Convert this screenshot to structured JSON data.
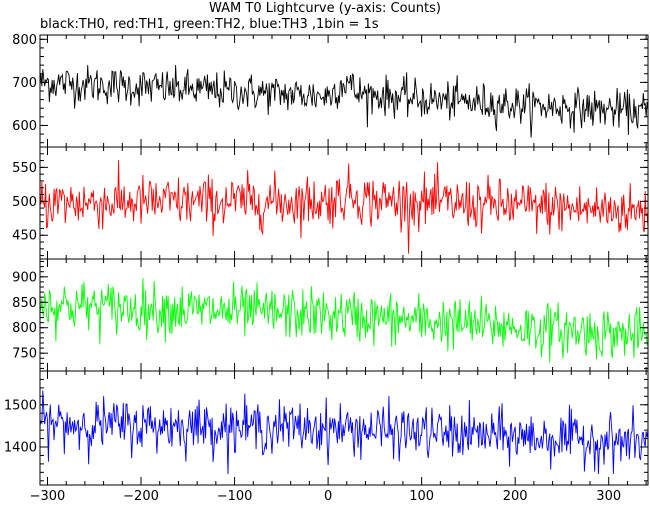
{
  "chart_data": {
    "type": "line",
    "title": "WAM T0 Lightcurve (y-axis: Counts)",
    "subtitle": "black:TH0, red:TH1, green:TH2, blue:TH3 ,1bin = 1s",
    "xlabel": "",
    "ylabel": "",
    "xlim": [
      -308,
      342
    ],
    "x_ticks": [
      -300,
      -200,
      -100,
      0,
      100,
      200,
      300
    ],
    "x_tick_labels": [
      "−300",
      "−200",
      "−100",
      "0",
      "100",
      "200",
      "300"
    ],
    "x_minor_step": 20,
    "x_step_seconds": 1,
    "grid": false,
    "panels": [
      {
        "series_name": "TH0",
        "color": "#000000",
        "ylim": [
          550,
          810
        ],
        "y_ticks": [
          600,
          700,
          800
        ],
        "y_minor_step": 20,
        "trend": [
          [
            -300,
            700
          ],
          [
            0,
            668
          ],
          [
            20,
            705
          ],
          [
            30,
            675
          ],
          [
            100,
            660
          ],
          [
            340,
            632
          ]
        ],
        "noise_sd": 22
      },
      {
        "series_name": "TH1",
        "color": "#ff0000",
        "ylim": [
          415,
          580
        ],
        "y_ticks": [
          450,
          500,
          550
        ],
        "y_minor_step": 10,
        "trend": [
          [
            -300,
            498
          ],
          [
            0,
            500
          ],
          [
            25,
            512
          ],
          [
            40,
            502
          ],
          [
            340,
            485
          ]
        ],
        "noise_sd": 19
      },
      {
        "series_name": "TH2",
        "color": "#00ff00",
        "ylim": [
          715,
          935
        ],
        "y_ticks": [
          750,
          800,
          850,
          900
        ],
        "y_minor_step": 10,
        "trend": [
          [
            -300,
            845
          ],
          [
            0,
            825
          ],
          [
            340,
            785
          ]
        ],
        "noise_sd": 25
      },
      {
        "series_name": "TH3",
        "color": "#0000ff",
        "ylim": [
          1310,
          1580
        ],
        "y_ticks": [
          1400,
          1500
        ],
        "y_minor_step": 20,
        "trend": [
          [
            -300,
            1455
          ],
          [
            0,
            1445
          ],
          [
            340,
            1410
          ]
        ],
        "noise_sd": 30
      }
    ]
  }
}
